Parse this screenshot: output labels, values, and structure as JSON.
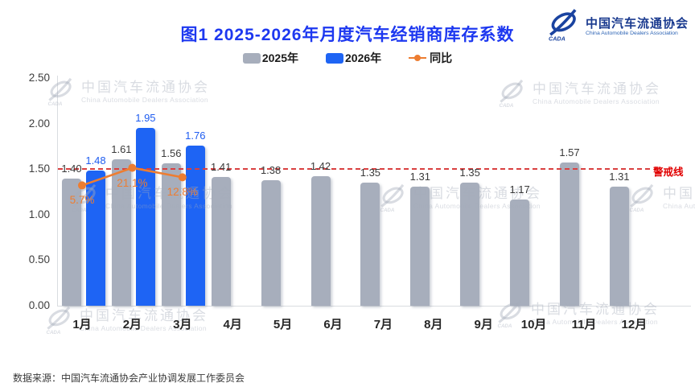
{
  "header": {
    "title": "图1  2025-2026年月度汽车经销商库存系数",
    "logo": {
      "icon": "cada-swoosh",
      "cn": "中国汽车流通协会",
      "en": "China Automobile Dealers Association",
      "mark_text": "CADA"
    }
  },
  "legend": [
    {
      "label": "2025年",
      "marker": "swatch",
      "color": "#a7aebc"
    },
    {
      "label": "2026年",
      "marker": "swatch",
      "color": "#1e64f4"
    },
    {
      "label": "同比",
      "marker": "line-dot",
      "color": "#ed7d31"
    }
  ],
  "chart_data": {
    "type": "bar",
    "categories": [
      "1月",
      "2月",
      "3月",
      "4月",
      "5月",
      "6月",
      "7月",
      "8月",
      "9月",
      "10月",
      "11月",
      "12月"
    ],
    "series": [
      {
        "name": "2025年",
        "type": "bar",
        "color": "#a7aebc",
        "values": [
          1.4,
          1.61,
          1.56,
          1.41,
          1.38,
          1.42,
          1.35,
          1.31,
          1.35,
          1.17,
          1.57,
          1.31
        ],
        "label_color": "#3a3a3a"
      },
      {
        "name": "2026年",
        "type": "bar",
        "color": "#1e64f4",
        "values": [
          1.48,
          1.95,
          1.76,
          null,
          null,
          null,
          null,
          null,
          null,
          null,
          null,
          null
        ],
        "label_color": "#1e5cf0"
      },
      {
        "name": "同比",
        "type": "line",
        "color": "#ed7d31",
        "unit": "%",
        "values": [
          5.7,
          21.1,
          12.8,
          null,
          null,
          null,
          null,
          null,
          null,
          null,
          null,
          null
        ]
      }
    ],
    "ylim": [
      0,
      2.5
    ],
    "yticks": [
      "2.50",
      "2.00",
      "1.50",
      "1.00",
      "0.50",
      "0.00"
    ],
    "y2lim": [
      -100,
      100
    ],
    "grid": false,
    "legend_position": "top",
    "reference_line": {
      "value": 1.5,
      "label": "警戒线",
      "color": "#d94040",
      "label_color": "#e10000",
      "style": "dashed"
    }
  },
  "watermark": {
    "cn": "中国汽车流通协会",
    "en": "China Automobile Dealers Association"
  },
  "footer": {
    "source": "数据来源：中国汽车流通协会产业协调发展工作委员会"
  }
}
